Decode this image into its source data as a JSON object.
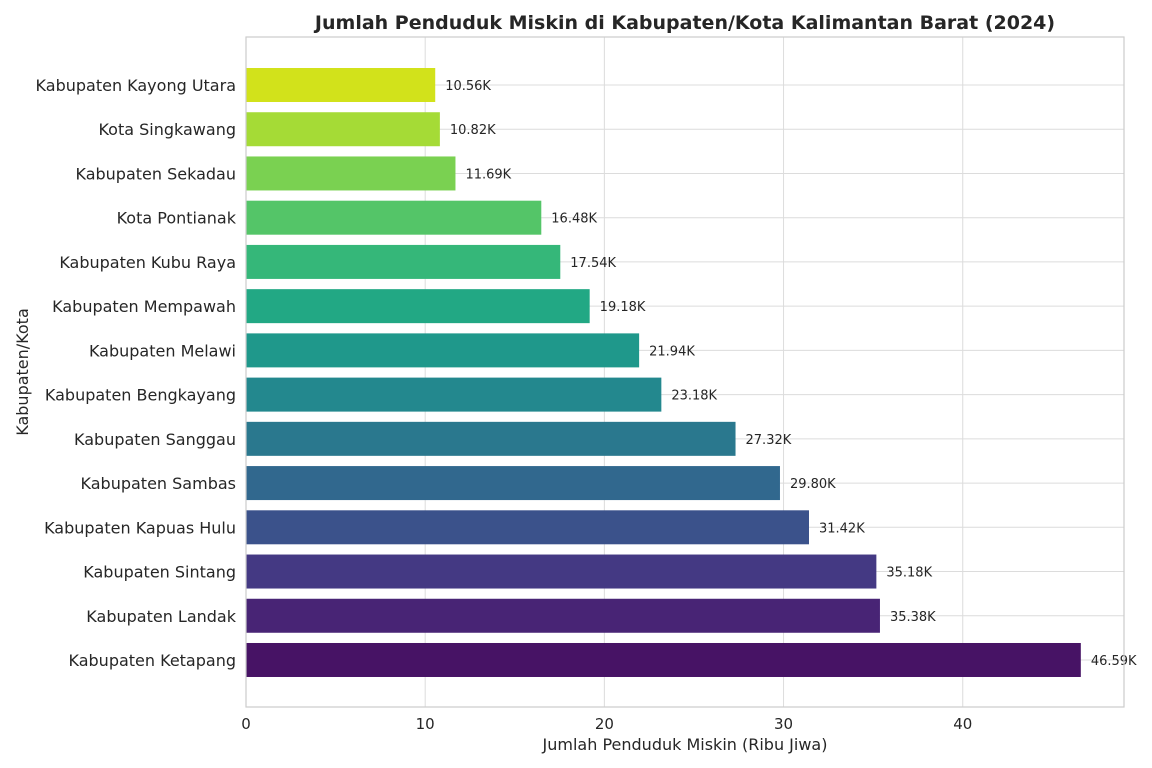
{
  "chart_data": {
    "type": "bar",
    "orientation": "horizontal",
    "title": "Jumlah Penduduk Miskin di Kabupaten/Kota Kalimantan Barat (2024)",
    "xlabel": "Jumlah Penduduk Miskin (Ribu Jiwa)",
    "ylabel": "Kabupaten/Kota",
    "xlim": [
      0,
      49
    ],
    "xticks": [
      0,
      10,
      20,
      30,
      40
    ],
    "grid": true,
    "categories": [
      "Kabupaten Kayong Utara",
      "Kota Singkawang",
      "Kabupaten Sekadau",
      "Kota Pontianak",
      "Kabupaten Kubu Raya",
      "Kabupaten Mempawah",
      "Kabupaten Melawi",
      "Kabupaten Bengkayang",
      "Kabupaten Sanggau",
      "Kabupaten Sambas",
      "Kabupaten Kapuas Hulu",
      "Kabupaten Sintang",
      "Kabupaten Landak",
      "Kabupaten Ketapang"
    ],
    "values": [
      10.56,
      10.82,
      11.69,
      16.48,
      17.54,
      19.18,
      21.94,
      23.18,
      27.32,
      29.8,
      31.42,
      35.18,
      35.38,
      46.59
    ],
    "data_labels": [
      "10.56K",
      "10.82K",
      "11.69K",
      "16.48K",
      "17.54K",
      "19.18K",
      "21.94K",
      "23.18K",
      "27.32K",
      "29.80K",
      "31.42K",
      "35.18K",
      "35.38K",
      "46.59K"
    ],
    "colors": [
      "#d2e21b",
      "#a5db36",
      "#7ad151",
      "#54c568",
      "#35b779",
      "#22a884",
      "#1f988b",
      "#23888e",
      "#2a788e",
      "#31688e",
      "#3b528b",
      "#443983",
      "#482475",
      "#471365"
    ]
  }
}
